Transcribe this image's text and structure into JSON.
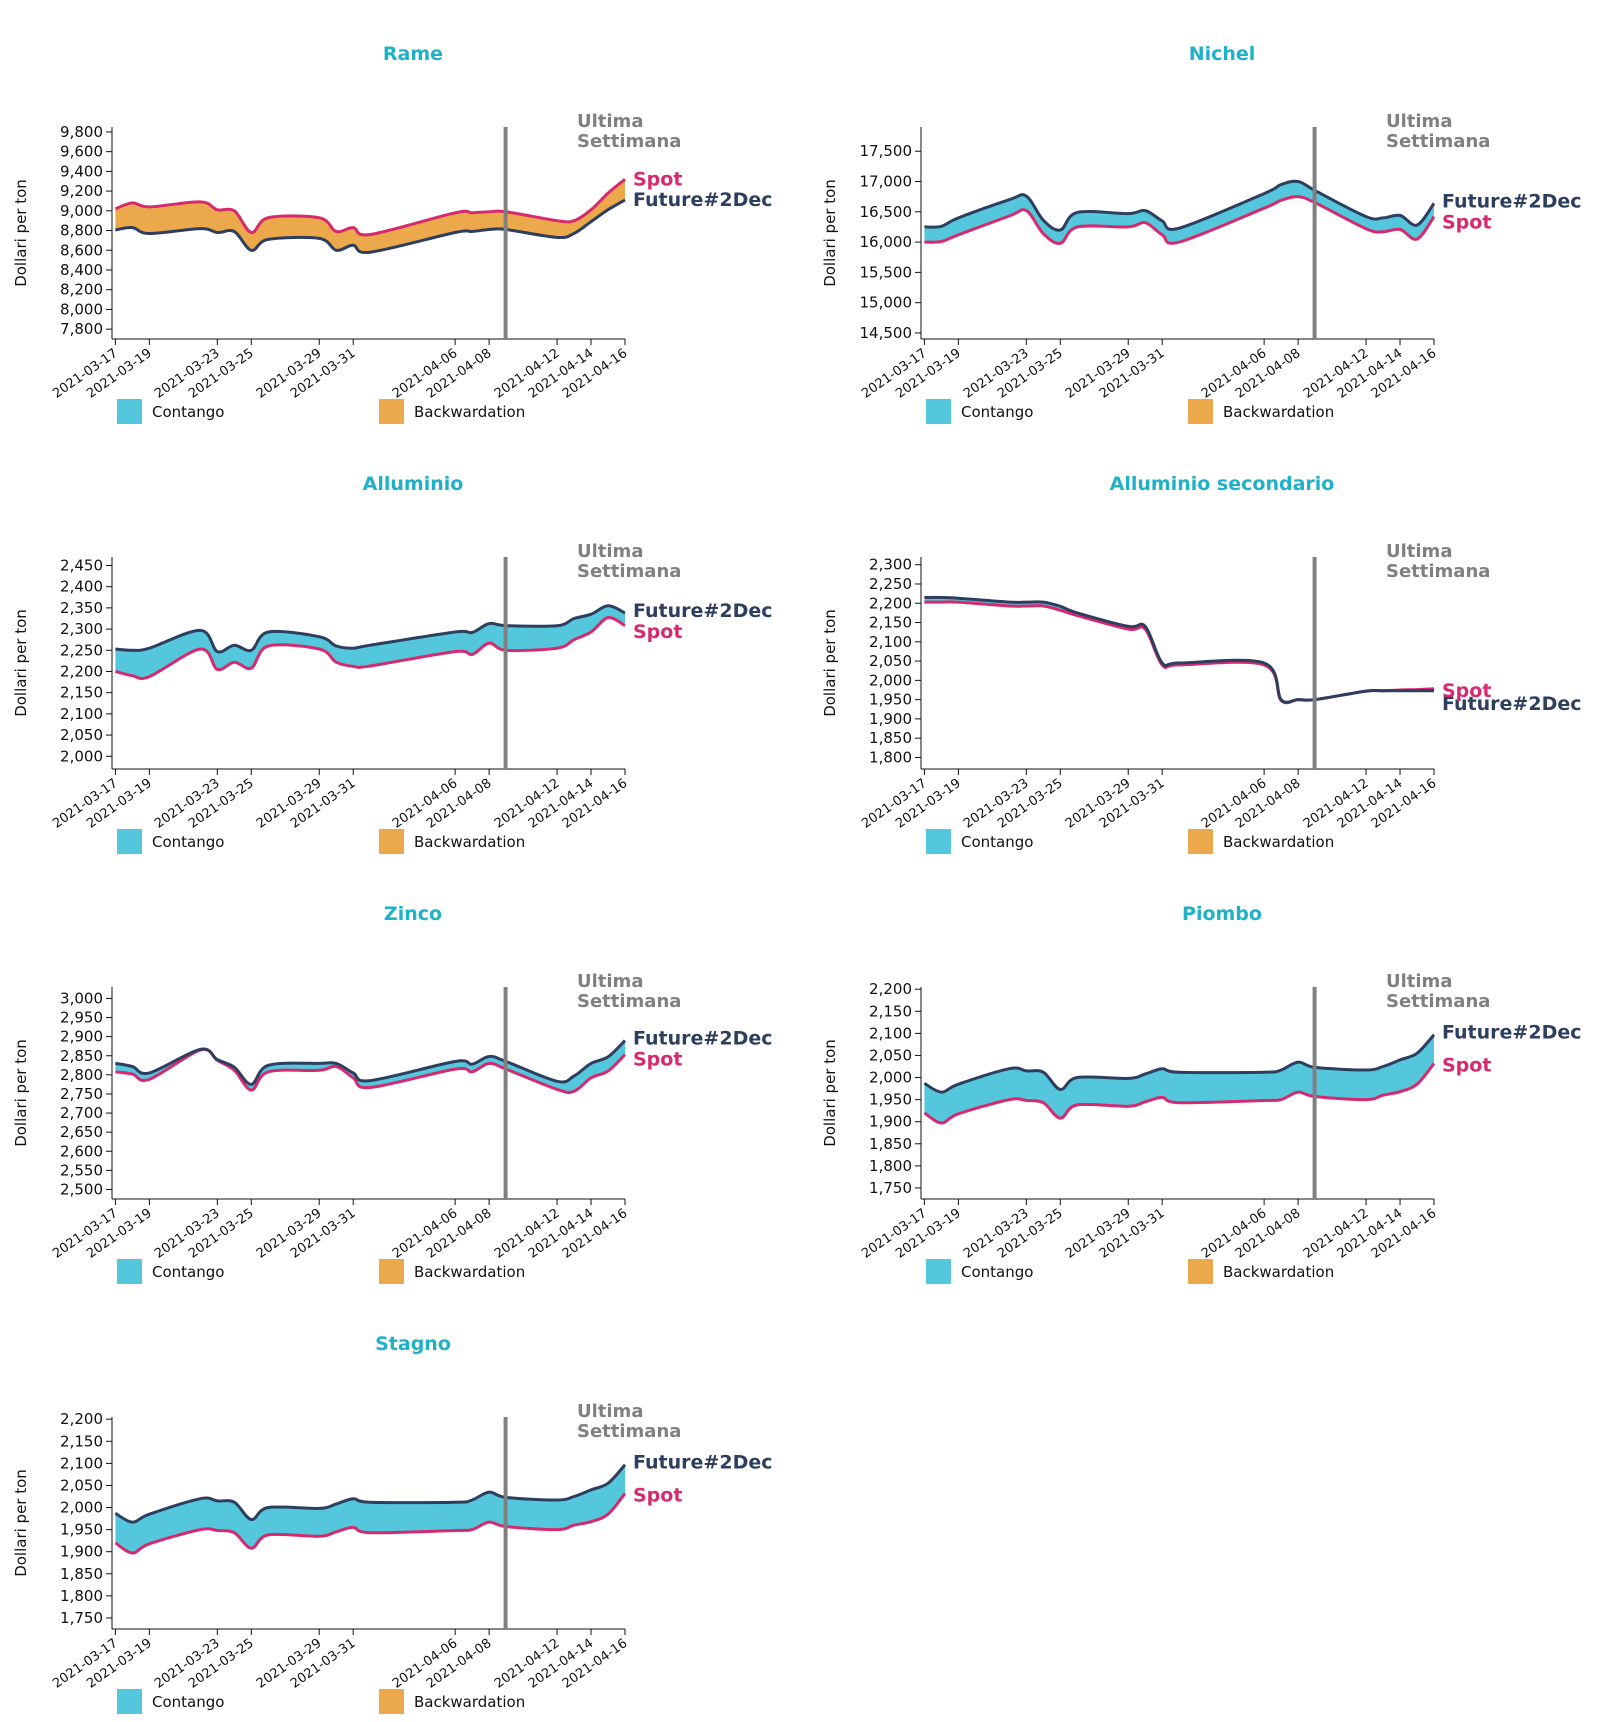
{
  "colors": {
    "title": "#1fb1c8",
    "contango": "#55c7dd",
    "backwardation": "#eba94c",
    "future": "#2d3e5f",
    "spot": "#d6296e",
    "week_line": "#808080"
  },
  "common": {
    "ylabel": "Dollari per ton",
    "week_label_line1": "Ultima",
    "week_label_line2": "Settimana",
    "legend_contango": "Contango",
    "legend_backwardation": "Backwardation",
    "future_label": "Future#2Dec",
    "spot_label": "Spot"
  },
  "chart_data": [
    {
      "type": "area",
      "title": "Rame",
      "ylabel": "Dollari per ton",
      "x": [
        "2021-03-17",
        "2021-03-18",
        "2021-03-19",
        "2021-03-22",
        "2021-03-23",
        "2021-03-24",
        "2021-03-25",
        "2021-03-26",
        "2021-03-29",
        "2021-03-30",
        "2021-03-31",
        "2021-04-01",
        "2021-04-06",
        "2021-04-07",
        "2021-04-08",
        "2021-04-09",
        "2021-04-12",
        "2021-04-13",
        "2021-04-14",
        "2021-04-15",
        "2021-04-16"
      ],
      "xticks": [
        "2021-03-17",
        "2021-03-19",
        "2021-03-23",
        "2021-03-25",
        "2021-03-29",
        "2021-03-31",
        "2021-04-06",
        "2021-04-08",
        "2021-04-12",
        "2021-04-14",
        "2021-04-16"
      ],
      "yticks": [
        "9,800",
        "9,600",
        "9,400",
        "9,200",
        "9,000",
        "8,800",
        "8,600",
        "8,400",
        "8,200",
        "8,000",
        "7,800"
      ],
      "ylim": [
        7700,
        9850
      ],
      "week_start": "2021-04-09",
      "series": [
        {
          "name": "Future#2Dec",
          "values": [
            8805,
            8830,
            8770,
            8820,
            8780,
            8790,
            8600,
            8710,
            8720,
            8600,
            8650,
            8580,
            8780,
            8790,
            8810,
            8810,
            8730,
            8770,
            8890,
            9010,
            9110
          ]
        },
        {
          "name": "Spot",
          "values": [
            9020,
            9080,
            9040,
            9090,
            9010,
            9000,
            8780,
            8930,
            8930,
            8790,
            8830,
            8760,
            8980,
            8980,
            8990,
            8990,
            8900,
            8900,
            9010,
            9180,
            9320
          ]
        }
      ],
      "label_order": [
        "Spot",
        "Future#2Dec"
      ]
    },
    {
      "type": "area",
      "title": "Nichel",
      "ylabel": "Dollari per ton",
      "x": [
        "2021-03-17",
        "2021-03-18",
        "2021-03-19",
        "2021-03-22",
        "2021-03-23",
        "2021-03-24",
        "2021-03-25",
        "2021-03-26",
        "2021-03-29",
        "2021-03-30",
        "2021-03-31",
        "2021-04-01",
        "2021-04-06",
        "2021-04-07",
        "2021-04-08",
        "2021-04-09",
        "2021-04-12",
        "2021-04-13",
        "2021-04-14",
        "2021-04-15",
        "2021-04-16"
      ],
      "xticks": [
        "2021-03-17",
        "2021-03-19",
        "2021-03-23",
        "2021-03-25",
        "2021-03-29",
        "2021-03-31",
        "2021-04-06",
        "2021-04-08",
        "2021-04-12",
        "2021-04-14",
        "2021-04-16"
      ],
      "yticks": [
        "17,500",
        "17,000",
        "16,500",
        "16,000",
        "15,500",
        "15,000",
        "14,500"
      ],
      "ylim": [
        14400,
        17900
      ],
      "week_start": "2021-04-09",
      "series": [
        {
          "name": "Future#2Dec",
          "values": [
            16250,
            16260,
            16400,
            16700,
            16760,
            16360,
            16200,
            16490,
            16470,
            16520,
            16350,
            16230,
            16800,
            16950,
            17000,
            16850,
            16420,
            16400,
            16440,
            16280,
            16640
          ]
        },
        {
          "name": "Spot",
          "values": [
            16000,
            16010,
            16120,
            16430,
            16520,
            16140,
            15980,
            16250,
            16250,
            16320,
            16120,
            16000,
            16560,
            16690,
            16750,
            16650,
            16220,
            16170,
            16210,
            16050,
            16420
          ]
        }
      ],
      "label_order": [
        "Future#2Dec",
        "Spot"
      ]
    },
    {
      "type": "area",
      "title": "Alluminio",
      "ylabel": "Dollari per ton",
      "x": [
        "2021-03-17",
        "2021-03-18",
        "2021-03-19",
        "2021-03-22",
        "2021-03-23",
        "2021-03-24",
        "2021-03-25",
        "2021-03-26",
        "2021-03-29",
        "2021-03-30",
        "2021-03-31",
        "2021-04-01",
        "2021-04-06",
        "2021-04-07",
        "2021-04-08",
        "2021-04-09",
        "2021-04-12",
        "2021-04-13",
        "2021-04-14",
        "2021-04-15",
        "2021-04-16"
      ],
      "xticks": [
        "2021-03-17",
        "2021-03-19",
        "2021-03-23",
        "2021-03-25",
        "2021-03-29",
        "2021-03-31",
        "2021-04-06",
        "2021-04-08",
        "2021-04-12",
        "2021-04-14",
        "2021-04-16"
      ],
      "yticks": [
        "2,450",
        "2,400",
        "2,350",
        "2,300",
        "2,250",
        "2,200",
        "2,150",
        "2,100",
        "2,050",
        "2,000"
      ],
      "ylim": [
        1970,
        2470
      ],
      "week_start": "2021-04-09",
      "series": [
        {
          "name": "Future#2Dec",
          "values": [
            2253,
            2250,
            2255,
            2297,
            2247,
            2262,
            2250,
            2293,
            2282,
            2260,
            2255,
            2262,
            2293,
            2292,
            2313,
            2308,
            2308,
            2325,
            2335,
            2355,
            2338
          ]
        },
        {
          "name": "Spot",
          "values": [
            2200,
            2190,
            2188,
            2253,
            2205,
            2222,
            2208,
            2260,
            2253,
            2222,
            2212,
            2213,
            2247,
            2240,
            2267,
            2250,
            2255,
            2275,
            2293,
            2327,
            2308
          ]
        }
      ],
      "label_order": [
        "Future#2Dec",
        "Spot"
      ]
    },
    {
      "type": "area",
      "title": "Alluminio secondario",
      "ylabel": "Dollari per ton",
      "x": [
        "2021-03-17",
        "2021-03-18",
        "2021-03-19",
        "2021-03-22",
        "2021-03-23",
        "2021-03-24",
        "2021-03-25",
        "2021-03-26",
        "2021-03-29",
        "2021-03-30",
        "2021-03-31",
        "2021-04-01",
        "2021-04-06",
        "2021-04-07",
        "2021-04-08",
        "2021-04-09",
        "2021-04-12",
        "2021-04-13",
        "2021-04-14",
        "2021-04-15",
        "2021-04-16"
      ],
      "xticks": [
        "2021-03-17",
        "2021-03-19",
        "2021-03-23",
        "2021-03-25",
        "2021-03-29",
        "2021-03-31",
        "2021-04-06",
        "2021-04-08",
        "2021-04-12",
        "2021-04-14",
        "2021-04-16"
      ],
      "yticks": [
        "2,300",
        "2,250",
        "2,200",
        "2,150",
        "2,100",
        "2,050",
        "2,000",
        "1,950",
        "1,900",
        "1,850",
        "1,800"
      ],
      "ylim": [
        1770,
        2320
      ],
      "week_start": "2021-04-09",
      "series": [
        {
          "name": "Future#2Dec",
          "values": [
            2215,
            2215,
            2213,
            2203,
            2203,
            2203,
            2192,
            2175,
            2140,
            2140,
            2045,
            2045,
            2045,
            1950,
            1950,
            1950,
            1972,
            1973,
            1973,
            1973,
            1973
          ]
        },
        {
          "name": "Spot",
          "values": [
            2203,
            2203,
            2203,
            2193,
            2193,
            2193,
            2182,
            2168,
            2133,
            2133,
            2040,
            2040,
            2040,
            1948,
            1950,
            1950,
            1972,
            1973,
            1975,
            1976,
            1978
          ]
        }
      ],
      "label_order": [
        "Future#2Dec",
        "Spot"
      ]
    },
    {
      "type": "area",
      "title": "Zinco",
      "ylabel": "Dollari per ton",
      "x": [
        "2021-03-17",
        "2021-03-18",
        "2021-03-19",
        "2021-03-22",
        "2021-03-23",
        "2021-03-24",
        "2021-03-25",
        "2021-03-26",
        "2021-03-29",
        "2021-03-30",
        "2021-03-31",
        "2021-04-01",
        "2021-04-06",
        "2021-04-07",
        "2021-04-08",
        "2021-04-09",
        "2021-04-12",
        "2021-04-13",
        "2021-04-14",
        "2021-04-15",
        "2021-04-16"
      ],
      "xticks": [
        "2021-03-17",
        "2021-03-19",
        "2021-03-23",
        "2021-03-25",
        "2021-03-29",
        "2021-03-31",
        "2021-04-06",
        "2021-04-08",
        "2021-04-12",
        "2021-04-14",
        "2021-04-16"
      ],
      "yticks": [
        "3,000",
        "2,950",
        "2,900",
        "2,850",
        "2,800",
        "2,750",
        "2,700",
        "2,650",
        "2,600",
        "2,550",
        "2,500"
      ],
      "ylim": [
        2475,
        3030
      ],
      "week_start": "2021-04-09",
      "series": [
        {
          "name": "Future#2Dec",
          "values": [
            2830,
            2822,
            2805,
            2867,
            2840,
            2820,
            2775,
            2825,
            2830,
            2830,
            2805,
            2785,
            2835,
            2828,
            2848,
            2835,
            2783,
            2797,
            2830,
            2847,
            2890
          ]
        },
        {
          "name": "Spot",
          "values": [
            2808,
            2802,
            2788,
            2865,
            2838,
            2812,
            2760,
            2808,
            2812,
            2822,
            2792,
            2767,
            2815,
            2808,
            2830,
            2815,
            2762,
            2757,
            2792,
            2810,
            2853
          ]
        }
      ],
      "label_order": [
        "Future#2Dec",
        "Spot"
      ]
    },
    {
      "type": "area",
      "title": "Piombo",
      "ylabel": "Dollari per ton",
      "x": [
        "2021-03-17",
        "2021-03-18",
        "2021-03-19",
        "2021-03-22",
        "2021-03-23",
        "2021-03-24",
        "2021-03-25",
        "2021-03-26",
        "2021-03-29",
        "2021-03-30",
        "2021-03-31",
        "2021-04-01",
        "2021-04-06",
        "2021-04-07",
        "2021-04-08",
        "2021-04-09",
        "2021-04-12",
        "2021-04-13",
        "2021-04-14",
        "2021-04-15",
        "2021-04-16"
      ],
      "xticks": [
        "2021-03-17",
        "2021-03-19",
        "2021-03-23",
        "2021-03-25",
        "2021-03-29",
        "2021-03-31",
        "2021-04-06",
        "2021-04-08",
        "2021-04-12",
        "2021-04-14",
        "2021-04-16"
      ],
      "yticks": [
        "2,200",
        "2,150",
        "2,100",
        "2,050",
        "2,000",
        "1,950",
        "1,900",
        "1,850",
        "1,800",
        "1,750"
      ],
      "ylim": [
        1725,
        2205
      ],
      "week_start": "2021-04-09",
      "series": [
        {
          "name": "Future#2Dec",
          "values": [
            1987,
            1967,
            1985,
            2020,
            2015,
            2012,
            1973,
            2000,
            1998,
            2008,
            2020,
            2012,
            2012,
            2017,
            2035,
            2023,
            2017,
            2025,
            2040,
            2055,
            2097
          ]
        },
        {
          "name": "Spot",
          "values": [
            1920,
            1897,
            1918,
            1950,
            1948,
            1943,
            1908,
            1938,
            1935,
            1945,
            1955,
            1943,
            1948,
            1950,
            1967,
            1957,
            1950,
            1960,
            1968,
            1985,
            2032
          ]
        }
      ],
      "label_order": [
        "Future#2Dec",
        "Spot"
      ]
    },
    {
      "type": "area",
      "title": "Stagno",
      "ylabel": "Dollari per ton",
      "x": [
        "2021-03-17",
        "2021-03-18",
        "2021-03-19",
        "2021-03-22",
        "2021-03-23",
        "2021-03-24",
        "2021-03-25",
        "2021-03-26",
        "2021-03-29",
        "2021-03-30",
        "2021-03-31",
        "2021-04-01",
        "2021-04-06",
        "2021-04-07",
        "2021-04-08",
        "2021-04-09",
        "2021-04-12",
        "2021-04-13",
        "2021-04-14",
        "2021-04-15",
        "2021-04-16"
      ],
      "xticks": [
        "2021-03-17",
        "2021-03-19",
        "2021-03-23",
        "2021-03-25",
        "2021-03-29",
        "2021-03-31",
        "2021-04-06",
        "2021-04-08",
        "2021-04-12",
        "2021-04-14",
        "2021-04-16"
      ],
      "yticks": [
        "2,200",
        "2,150",
        "2,100",
        "2,050",
        "2,000",
        "1,950",
        "1,900",
        "1,850",
        "1,800",
        "1,750"
      ],
      "ylim": [
        1725,
        2205
      ],
      "week_start": "2021-04-09",
      "series": [
        {
          "name": "Future#2Dec",
          "values": [
            1987,
            1967,
            1985,
            2020,
            2015,
            2012,
            1973,
            2000,
            1998,
            2008,
            2020,
            2012,
            2012,
            2017,
            2035,
            2023,
            2017,
            2025,
            2040,
            2055,
            2097
          ]
        },
        {
          "name": "Spot",
          "values": [
            1920,
            1897,
            1918,
            1950,
            1948,
            1943,
            1908,
            1938,
            1935,
            1945,
            1955,
            1943,
            1948,
            1950,
            1967,
            1957,
            1950,
            1960,
            1968,
            1985,
            2032
          ]
        }
      ],
      "label_order": [
        "Future#2Dec",
        "Spot"
      ]
    }
  ]
}
